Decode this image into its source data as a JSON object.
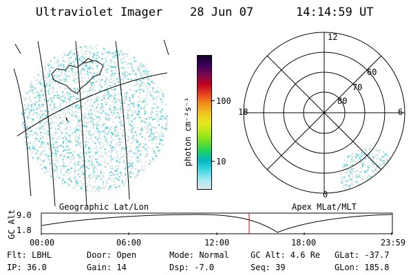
{
  "header": {
    "title": "Ultraviolet Imager",
    "date": "28 Jun 07",
    "time": "14:14:59 UT"
  },
  "colorbar": {
    "label": "photon cm⁻²s⁻¹",
    "ticks": [
      "100",
      "10"
    ],
    "colors": [
      "#1a0030",
      "#3a0058",
      "#7a0a50",
      "#c00020",
      "#e84020",
      "#f08c1c",
      "#f0c020",
      "#e8e820",
      "#b8e818",
      "#70e020",
      "#20d060",
      "#00b8c0",
      "#40d8e0",
      "#a0e8f0",
      "#d8e8e8"
    ]
  },
  "panels": {
    "left_label": "Geographic Lat/Lon",
    "right_label": "Apex MLat/MLT"
  },
  "polar": {
    "mlt_labels": [
      "12",
      "18",
      "6",
      "0"
    ],
    "lat_labels": [
      "60",
      "70",
      "80"
    ]
  },
  "altitude_plot": {
    "ylabel": "GC Alt",
    "yticks": [
      "9.0",
      "1.8"
    ],
    "xticks": [
      "00:00",
      "06:00",
      "12:00",
      "18:00",
      "23:59"
    ]
  },
  "info": {
    "flt": "Flt: LBHL",
    "ip": "IP: 36.0",
    "door": "Door: Open",
    "gain": "Gain: 14",
    "mode": "Mode: Normal",
    "dsp": "Dsp:   -7.0",
    "gcalt": "GC Alt: 4.6 Re",
    "seq": "Seq: 39",
    "glat": "GLat: -37.7",
    "glon": "GLon: 185.8"
  },
  "colors": {
    "speckle_light": "#c8e0e0",
    "speckle_cyan": "#40d0d8",
    "marker": "#e00000"
  }
}
